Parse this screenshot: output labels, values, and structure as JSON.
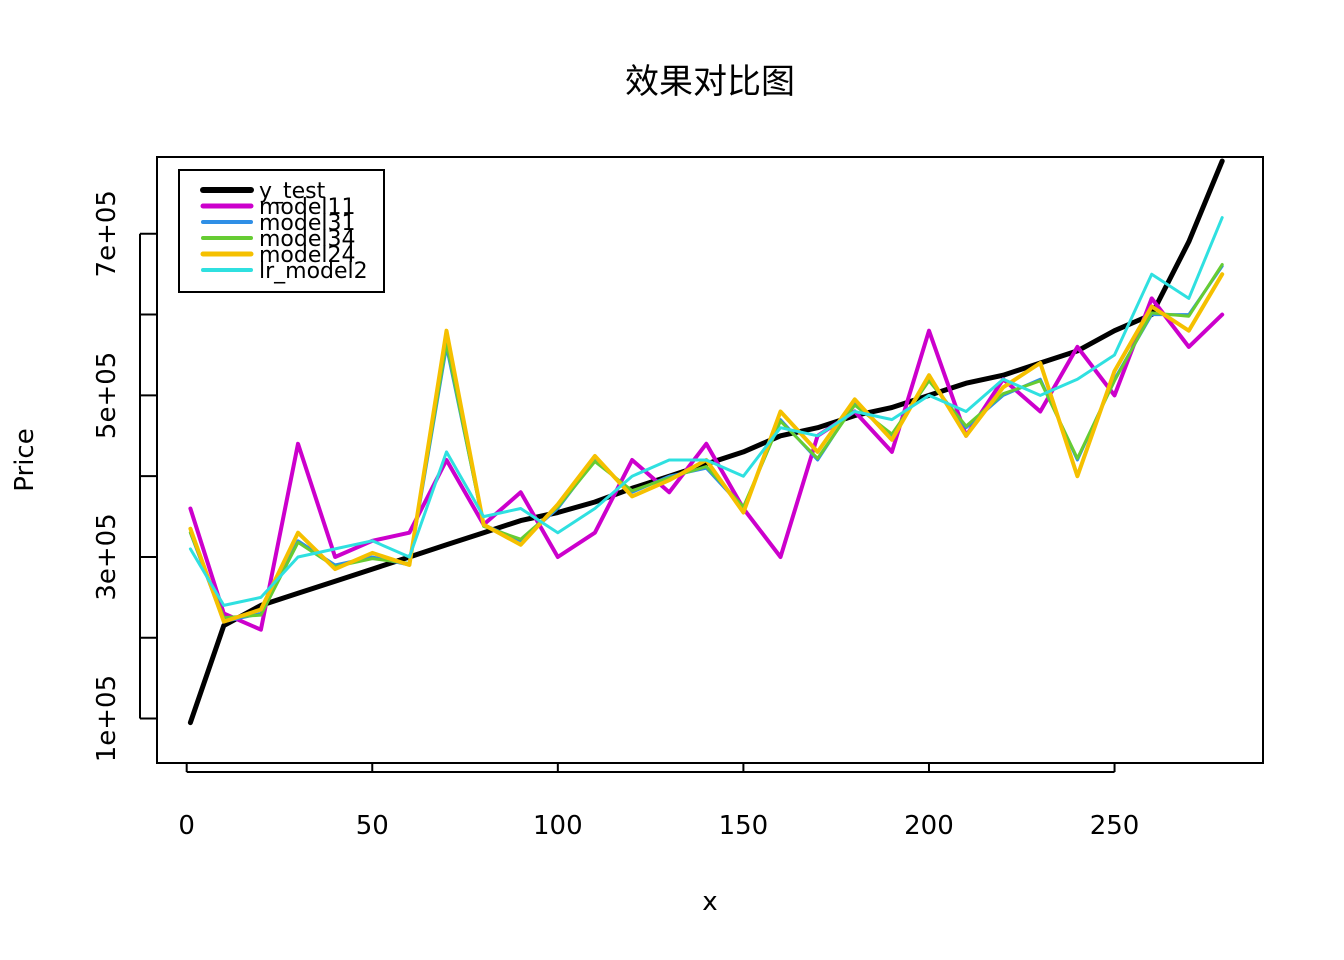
{
  "chart_data": {
    "type": "line",
    "title": "效果对比图",
    "xlabel": "x",
    "ylabel": "Price",
    "xlim": [
      -8,
      290
    ],
    "ylim": [
      45000,
      795000
    ],
    "x_ticks": [
      0,
      50,
      100,
      150,
      200,
      250
    ],
    "x_tick_labels": [
      "0",
      "50",
      "100",
      "150",
      "200",
      "250"
    ],
    "y_ticks": [
      100000,
      200000,
      300000,
      400000,
      500000,
      600000,
      700000
    ],
    "y_tick_labels": [
      "1e+05",
      "",
      "3e+05",
      "",
      "5e+05",
      "",
      "7e+05"
    ],
    "legend_position": "top-left",
    "x": [
      1,
      10,
      20,
      30,
      40,
      50,
      60,
      70,
      80,
      90,
      100,
      110,
      120,
      130,
      140,
      150,
      160,
      170,
      180,
      190,
      200,
      210,
      220,
      230,
      240,
      250,
      260,
      270,
      279
    ],
    "series": [
      {
        "name": "y_test",
        "color": "#000000",
        "width": 5,
        "values": [
          95000,
          215000,
          240000,
          255000,
          270000,
          285000,
          300000,
          315000,
          330000,
          345000,
          355000,
          368000,
          385000,
          400000,
          415000,
          430000,
          450000,
          460000,
          475000,
          485000,
          500000,
          515000,
          525000,
          540000,
          555000,
          580000,
          600000,
          690000,
          790000
        ]
      },
      {
        "name": "model11",
        "color": "#cc00cc",
        "width": 4,
        "values": [
          360000,
          230000,
          210000,
          440000,
          300000,
          320000,
          330000,
          420000,
          340000,
          380000,
          300000,
          330000,
          420000,
          380000,
          440000,
          360000,
          300000,
          450000,
          480000,
          430000,
          580000,
          450000,
          520000,
          480000,
          560000,
          500000,
          620000,
          560000,
          600000
        ]
      },
      {
        "name": "model31",
        "color": "#2f8fe6",
        "width": 3,
        "values": [
          330000,
          220000,
          230000,
          320000,
          290000,
          300000,
          290000,
          560000,
          340000,
          320000,
          360000,
          420000,
          380000,
          400000,
          410000,
          360000,
          470000,
          420000,
          490000,
          450000,
          520000,
          460000,
          500000,
          520000,
          420000,
          520000,
          600000,
          600000,
          660000
        ]
      },
      {
        "name": "model34",
        "color": "#66cc33",
        "width": 3,
        "values": [
          330000,
          225000,
          228000,
          318000,
          288000,
          298000,
          292000,
          565000,
          338000,
          322000,
          362000,
          418000,
          382000,
          398000,
          412000,
          362000,
          468000,
          422000,
          488000,
          452000,
          518000,
          462000,
          502000,
          518000,
          422000,
          518000,
          602000,
          598000,
          662000
        ]
      },
      {
        "name": "model24",
        "color": "#f5c000",
        "width": 4,
        "values": [
          335000,
          220000,
          235000,
          330000,
          285000,
          305000,
          290000,
          580000,
          340000,
          315000,
          365000,
          425000,
          375000,
          395000,
          420000,
          355000,
          480000,
          430000,
          495000,
          445000,
          525000,
          450000,
          510000,
          540000,
          400000,
          530000,
          610000,
          580000,
          650000
        ]
      },
      {
        "name": "lr_model2",
        "color": "#2fe0e0",
        "width": 3,
        "values": [
          310000,
          240000,
          250000,
          300000,
          310000,
          320000,
          300000,
          430000,
          350000,
          360000,
          330000,
          360000,
          400000,
          420000,
          420000,
          400000,
          460000,
          450000,
          480000,
          470000,
          500000,
          480000,
          520000,
          500000,
          520000,
          550000,
          650000,
          620000,
          720000
        ]
      }
    ]
  }
}
